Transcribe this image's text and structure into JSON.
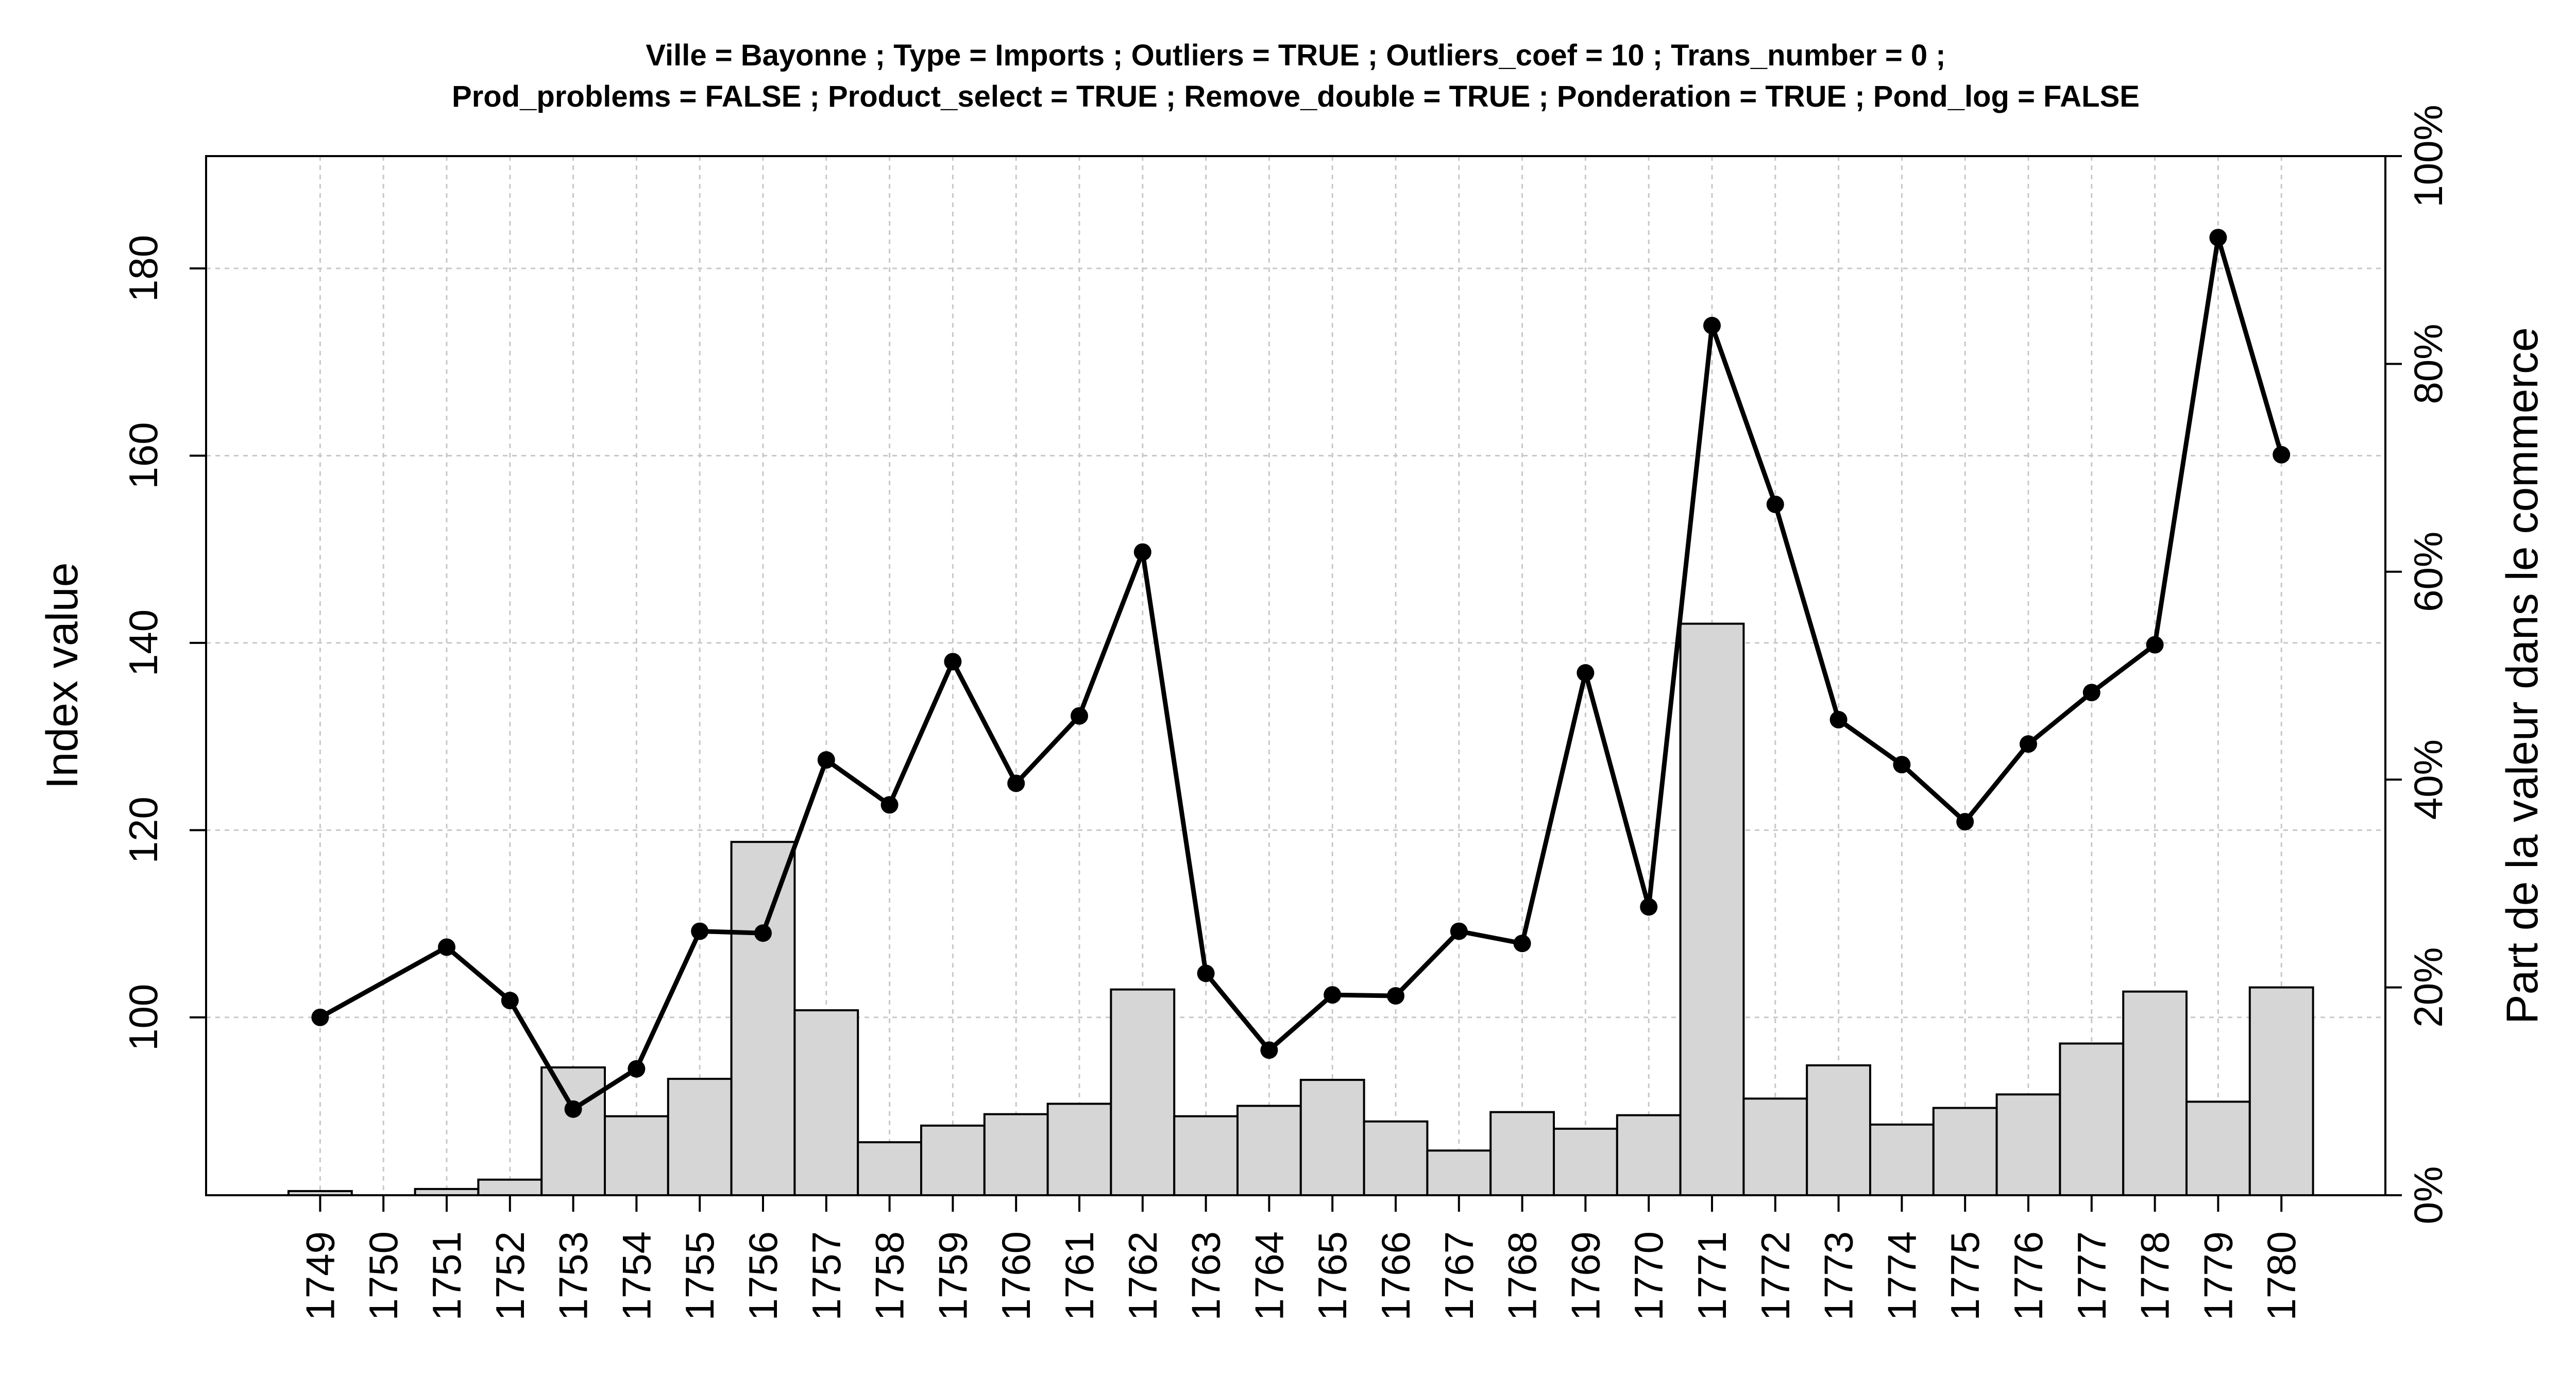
{
  "chart_data": {
    "type": "bar+line",
    "title_lines": [
      "Ville = Bayonne ; Type = Imports ; Outliers = TRUE ; Outliers_coef = 10 ; Trans_number = 0 ;",
      "Prod_problems = FALSE ; Product_select = TRUE ; Remove_double = TRUE ; Ponderation = TRUE ; Pond_log = FALSE"
    ],
    "ylabel": "Index value",
    "y2label": "Part de la valeur dans le commerce",
    "ylim": [
      81,
      192
    ],
    "y2lim": [
      0,
      100
    ],
    "y_ticks": [
      100,
      120,
      140,
      160,
      180
    ],
    "y2_ticks": [
      "0%",
      "20%",
      "40%",
      "60%",
      "80%",
      "100%"
    ],
    "grid": true,
    "categories": [
      "1749",
      "1750",
      "1751",
      "1752",
      "1753",
      "1754",
      "1755",
      "1756",
      "1757",
      "1758",
      "1759",
      "1760",
      "1761",
      "1762",
      "1763",
      "1764",
      "1765",
      "1766",
      "1767",
      "1768",
      "1769",
      "1770",
      "1771",
      "1772",
      "1773",
      "1774",
      "1775",
      "1776",
      "1777",
      "1778",
      "1779",
      "1780"
    ],
    "series": [
      {
        "type": "bar",
        "axis": "right",
        "values": [
          0.4,
          0,
          0.6,
          1.5,
          12.3,
          7.6,
          11.2,
          34.0,
          17.8,
          5.1,
          6.7,
          7.8,
          8.8,
          19.8,
          7.6,
          8.6,
          11.1,
          7.1,
          4.3,
          8.0,
          6.4,
          7.7,
          55.0,
          9.3,
          12.5,
          6.8,
          8.4,
          9.7,
          14.6,
          19.6,
          9.0,
          20.0
        ]
      },
      {
        "type": "line",
        "axis": "left",
        "values": [
          100,
          null,
          107.5,
          101.8,
          90.2,
          94.5,
          109.2,
          109,
          127.5,
          122.7,
          138,
          125,
          132.2,
          149.7,
          104.7,
          96.5,
          102.4,
          102.3,
          109.2,
          107.9,
          136.8,
          111.8,
          173.9,
          154.8,
          131.8,
          127,
          120.9,
          129.2,
          134.7,
          139.8,
          183.3,
          160.1
        ]
      }
    ]
  }
}
